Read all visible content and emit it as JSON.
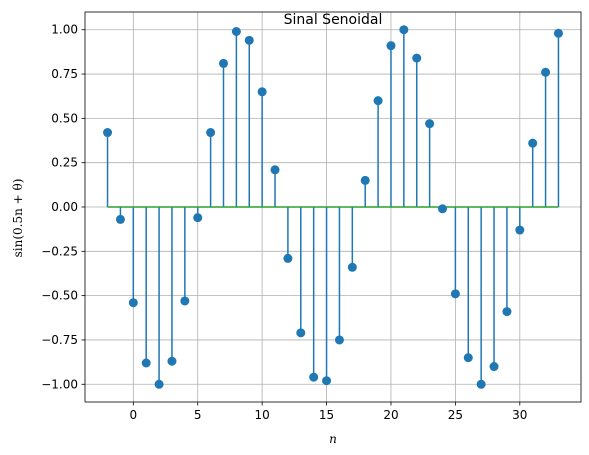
{
  "chart_data": {
    "type": "stem",
    "title": "Sinal Senoidal",
    "xlabel": "n",
    "ylabel": "sin(0.5n + θ)",
    "xlim": [
      -3.75,
      34.75
    ],
    "ylim": [
      -1.1,
      1.1
    ],
    "xticks": [
      0,
      5,
      10,
      15,
      20,
      25,
      30
    ],
    "xtick_labels": [
      "0",
      "5",
      "10",
      "15",
      "20",
      "25",
      "30"
    ],
    "yticks": [
      1.0,
      0.75,
      0.5,
      0.25,
      0.0,
      -0.25,
      -0.5,
      -0.75,
      -1.0
    ],
    "ytick_labels": [
      "1.00",
      "0.75",
      "0.50",
      "0.25",
      "0.00",
      "−0.25",
      "−0.50",
      "−0.75",
      "−1.00"
    ],
    "grid": true,
    "colors": {
      "stem": "#1f77b4",
      "baseline": "#2ca02c",
      "grid": "#b0b0b0"
    },
    "x": [
      -2,
      -1,
      0,
      1,
      2,
      3,
      4,
      5,
      6,
      7,
      8,
      9,
      10,
      11,
      12,
      13,
      14,
      15,
      16,
      17,
      18,
      19,
      20,
      21,
      22,
      23,
      24,
      25,
      26,
      27,
      28,
      29,
      30,
      31,
      32,
      33
    ],
    "y": [
      0.42,
      -0.07,
      -0.54,
      -0.88,
      -1.0,
      -0.87,
      -0.53,
      -0.06,
      0.42,
      0.81,
      0.99,
      0.94,
      0.65,
      0.21,
      -0.29,
      -0.71,
      -0.96,
      -0.98,
      -0.75,
      -0.34,
      0.15,
      0.6,
      0.91,
      1.0,
      0.84,
      0.47,
      -0.01,
      -0.49,
      -0.85,
      -1.0,
      -0.9,
      -0.59,
      -0.13,
      0.36,
      0.76,
      0.98
    ]
  }
}
